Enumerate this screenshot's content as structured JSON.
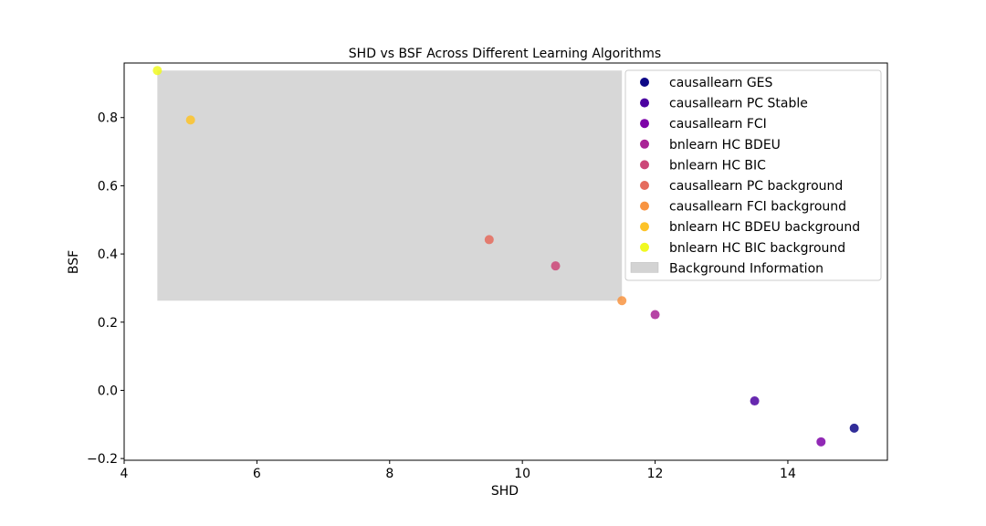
{
  "chart_data": {
    "type": "scatter",
    "title": "SHD vs BSF Across Different Learning Algorithms",
    "xlabel": "SHD",
    "ylabel": "BSF",
    "xlim": [
      4.0,
      15.5
    ],
    "ylim": [
      -0.205,
      0.96
    ],
    "xticks": [
      4,
      6,
      8,
      10,
      12,
      14
    ],
    "xtick_labels": [
      "4",
      "6",
      "8",
      "10",
      "12",
      "14"
    ],
    "yticks": [
      -0.2,
      0.0,
      0.2,
      0.4,
      0.6,
      0.8
    ],
    "ytick_labels": [
      "−0.2",
      "0.0",
      "0.2",
      "0.4",
      "0.6",
      "0.8"
    ],
    "grid": false,
    "legend_position": "top-right",
    "series": [
      {
        "name": "causallearn GES",
        "color": "#0d0887",
        "x": 15.0,
        "y": -0.111
      },
      {
        "name": "causallearn PC Stable",
        "color": "#4c02a1",
        "x": 13.5,
        "y": -0.031
      },
      {
        "name": "causallearn FCI",
        "color": "#7e03a8",
        "x": 14.5,
        "y": -0.151
      },
      {
        "name": "bnlearn HC BDEU",
        "color": "#a92395",
        "x": 12.0,
        "y": 0.222
      },
      {
        "name": "bnlearn HC BIC",
        "color": "#cc4778",
        "x": 10.5,
        "y": 0.365
      },
      {
        "name": "causallearn PC background",
        "color": "#e56b5d",
        "x": 9.5,
        "y": 0.442
      },
      {
        "name": "causallearn FCI background",
        "color": "#f89441",
        "x": 11.5,
        "y": 0.263
      },
      {
        "name": "bnlearn HC BDEU background",
        "color": "#fdc328",
        "x": 5.0,
        "y": 0.793
      },
      {
        "name": "bnlearn HC BIC background",
        "color": "#f0f921",
        "x": 4.5,
        "y": 0.938
      }
    ],
    "background_region": {
      "name": "Background Information",
      "color": "#d3d3d3",
      "x": [
        4.5,
        11.5
      ],
      "y": [
        0.263,
        0.938
      ]
    }
  }
}
